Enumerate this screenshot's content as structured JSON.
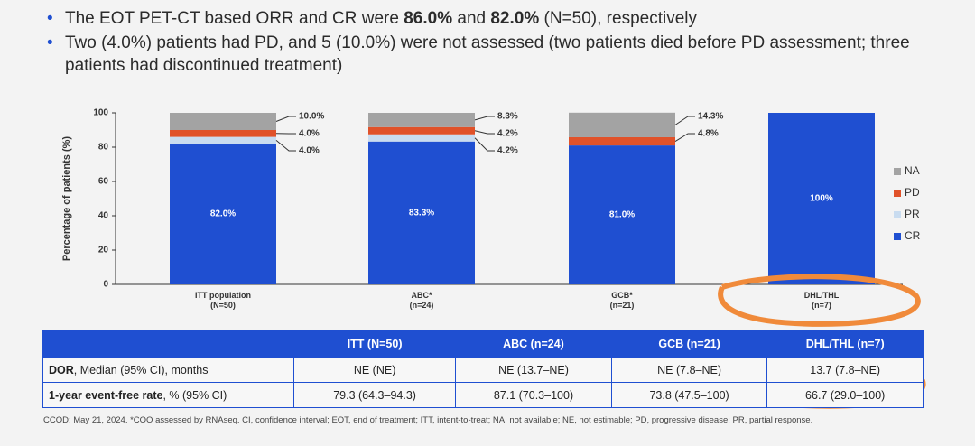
{
  "bullets": [
    [
      {
        "text": "The EOT PET-CT based ORR and CR were ",
        "bold": false
      },
      {
        "text": "86.0%",
        "bold": true
      },
      {
        "text": " and ",
        "bold": false
      },
      {
        "text": "82.0%",
        "bold": true
      },
      {
        "text": " (N=50), respectively",
        "bold": false
      }
    ],
    [
      {
        "text": "Two (4.0%) patients had PD, and 5 (10.0%) were not assessed (two patients died before PD assessment; three patients had discontinued treatment)",
        "bold": false
      }
    ]
  ],
  "chart_data": {
    "type": "stacked_bar",
    "y_label": "Percentage of patients (%)",
    "categories": [
      "ITT population\n(N=50)",
      "ABC*\n(n=24)",
      "GCB*\n(n=21)",
      "DHL/THL\n(n=7)"
    ],
    "series": [
      {
        "name": "CR",
        "color": "#1f4fd1",
        "values": [
          82.0,
          83.3,
          81.0,
          100
        ],
        "value_labels": [
          "82.0%",
          "83.3%",
          "81.0%",
          "100%"
        ]
      },
      {
        "name": "PR",
        "color": "#c9dcf0",
        "values": [
          4.0,
          4.2,
          0,
          0
        ],
        "value_labels": [
          "4.0%",
          "4.2%",
          null,
          null
        ]
      },
      {
        "name": "PD",
        "color": "#e0522a",
        "values": [
          4.0,
          4.2,
          4.8,
          0
        ],
        "value_labels": [
          "4.0%",
          "4.2%",
          "4.8%",
          null
        ]
      },
      {
        "name": "NA",
        "color": "#a3a3a3",
        "values": [
          10.0,
          8.3,
          14.3,
          0
        ],
        "value_labels": [
          "10.0%",
          "8.3%",
          "14.3%",
          null
        ]
      }
    ],
    "ylim": [
      0,
      100
    ],
    "yticks": [
      0,
      20,
      40,
      60,
      80,
      100
    ],
    "grid": false,
    "legend": "right"
  },
  "table": {
    "header": [
      "ITT (N=50)",
      "ABC (n=24)",
      "GCB (n=21)",
      "DHL/THL (n=7)"
    ],
    "rows": [
      {
        "label_bold": "DOR",
        "label": ", Median (95% CI), months",
        "cells": [
          "NE (NE)",
          "NE (13.7–NE)",
          "NE (7.8–NE)",
          "13.7 (7.8–NE)"
        ]
      },
      {
        "label_bold": "1-year event-free rate",
        "label": ", % (95% CI)",
        "cells": [
          "79.3 (64.3–94.3)",
          "87.1 (70.3–100)",
          "73.8 (47.5–100)",
          "66.7 (29.0–100)"
        ]
      }
    ]
  },
  "footnote": "CCOD: May 21, 2024. *COO assessed by RNAseq. CI, confidence interval; EOT, end of treatment; ITT, intent-to-treat; NA, not available; NE, not estimable; PD, progressive disease; PR, partial response."
}
